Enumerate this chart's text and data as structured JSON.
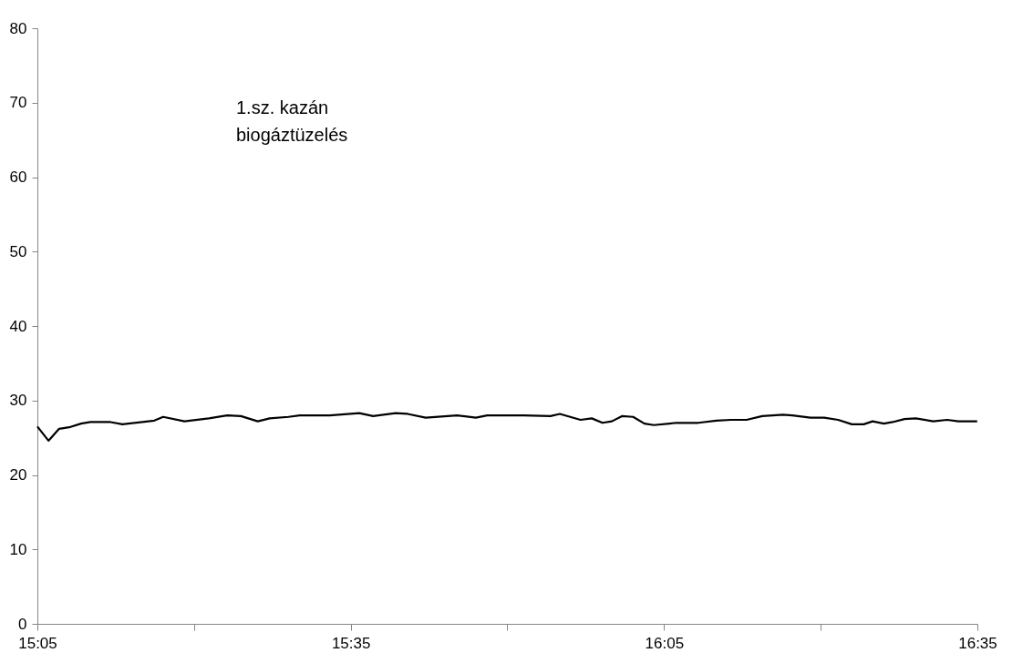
{
  "chart_data": {
    "type": "line",
    "annotations": [
      "1.sz. kazán\nbiogáztüzelés"
    ],
    "x": [
      15.0833,
      15.101,
      15.118,
      15.134,
      15.153,
      15.168,
      15.2,
      15.219,
      15.251,
      15.27,
      15.284,
      15.318,
      15.357,
      15.386,
      15.408,
      15.435,
      15.454,
      15.484,
      15.502,
      15.55,
      15.597,
      15.619,
      15.655,
      15.674,
      15.703,
      15.753,
      15.783,
      15.801,
      15.859,
      15.902,
      15.917,
      15.95,
      15.968,
      15.985,
      16.0,
      16.016,
      16.034,
      16.052,
      16.067,
      16.092,
      16.103,
      16.138,
      16.167,
      16.19,
      16.215,
      16.24,
      16.273,
      16.288,
      16.317,
      16.339,
      16.361,
      16.383,
      16.402,
      16.416,
      16.434,
      16.448,
      16.467,
      16.485,
      16.513,
      16.535,
      16.553,
      16.583
    ],
    "series": [
      {
        "color": "#000000",
        "values": [
          26.5,
          24.6,
          26.2,
          26.4,
          26.9,
          27.1,
          27.1,
          26.8,
          27.1,
          27.3,
          27.8,
          27.2,
          27.6,
          28.0,
          27.9,
          27.2,
          27.6,
          27.8,
          28.0,
          28.0,
          28.3,
          27.9,
          28.3,
          28.2,
          27.7,
          28.0,
          27.7,
          28.0,
          28.0,
          27.9,
          28.2,
          27.4,
          27.6,
          27.0,
          27.2,
          27.9,
          27.8,
          26.9,
          26.7,
          26.9,
          27.0,
          27.0,
          27.3,
          27.4,
          27.4,
          27.9,
          28.1,
          28.0,
          27.7,
          27.7,
          27.4,
          26.8,
          26.8,
          27.2,
          26.9,
          27.1,
          27.5,
          27.6,
          27.2,
          27.4,
          27.2,
          27.2
        ]
      }
    ],
    "xlim": [
      15.0833,
      16.5833
    ],
    "xticks": [
      {
        "value": 15.0833,
        "label": "15:05"
      },
      {
        "value": 15.3333,
        "label": null
      },
      {
        "value": 15.5833,
        "label": "15:35"
      },
      {
        "value": 15.8333,
        "label": null
      },
      {
        "value": 16.0833,
        "label": "16:05"
      },
      {
        "value": 16.3333,
        "label": null
      },
      {
        "value": 16.5833,
        "label": "16:35"
      }
    ],
    "ylim": [
      0,
      80
    ],
    "yticks": [
      0,
      10,
      20,
      30,
      40,
      50,
      60,
      70,
      80
    ],
    "grid": false,
    "marker": "none",
    "line_style": "solid"
  }
}
